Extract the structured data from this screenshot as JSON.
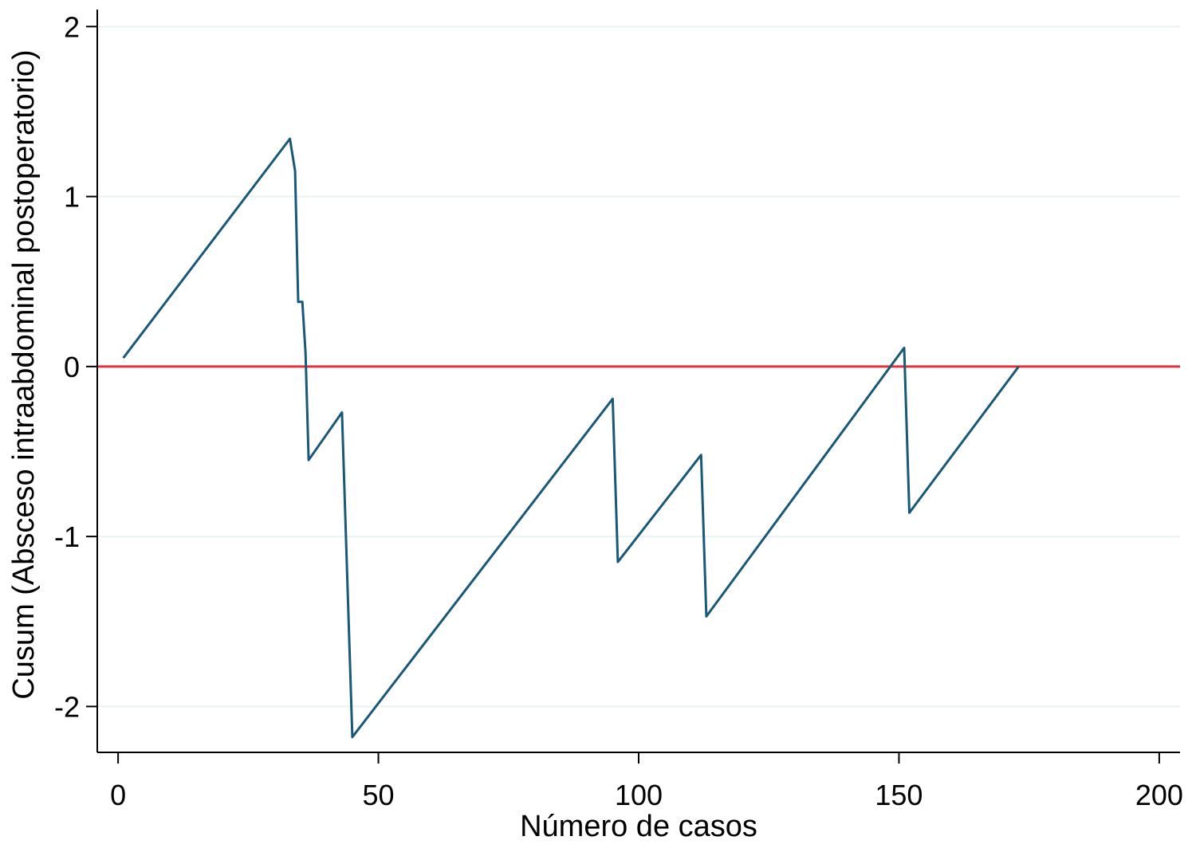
{
  "chart_data": {
    "type": "line",
    "title": "",
    "xlabel": "Número de casos",
    "ylabel": "Cusum (Absceso intraabdominal postoperatorio)",
    "xlim": [
      -4,
      204
    ],
    "ylim": [
      -2.27,
      2.1
    ],
    "x_ticks": [
      0,
      50,
      100,
      150,
      200
    ],
    "x_tick_labels": [
      "0",
      "50",
      "100",
      "150",
      "200"
    ],
    "y_ticks": [
      -2,
      -1,
      0,
      1,
      2
    ],
    "y_tick_labels": [
      "-2",
      "-1",
      "0",
      "1",
      "2"
    ],
    "grid": {
      "horizontal": true,
      "color": "#eaf2f3"
    },
    "reference_line": {
      "y": 0,
      "color": "#e0323c"
    },
    "series": [
      {
        "color": "#1a5878",
        "points": [
          [
            1,
            0.05
          ],
          [
            33,
            1.34
          ],
          [
            34,
            1.15
          ],
          [
            34.6,
            0.38
          ],
          [
            35.4,
            0.38
          ],
          [
            36,
            0.08
          ],
          [
            36.6,
            -0.55
          ],
          [
            43,
            -0.27
          ],
          [
            45,
            -2.18
          ],
          [
            95,
            -0.19
          ],
          [
            96,
            -1.15
          ],
          [
            112,
            -0.52
          ],
          [
            113,
            -1.47
          ],
          [
            151,
            0.11
          ],
          [
            152,
            -0.86
          ],
          [
            173,
            0.0
          ]
        ]
      }
    ]
  }
}
